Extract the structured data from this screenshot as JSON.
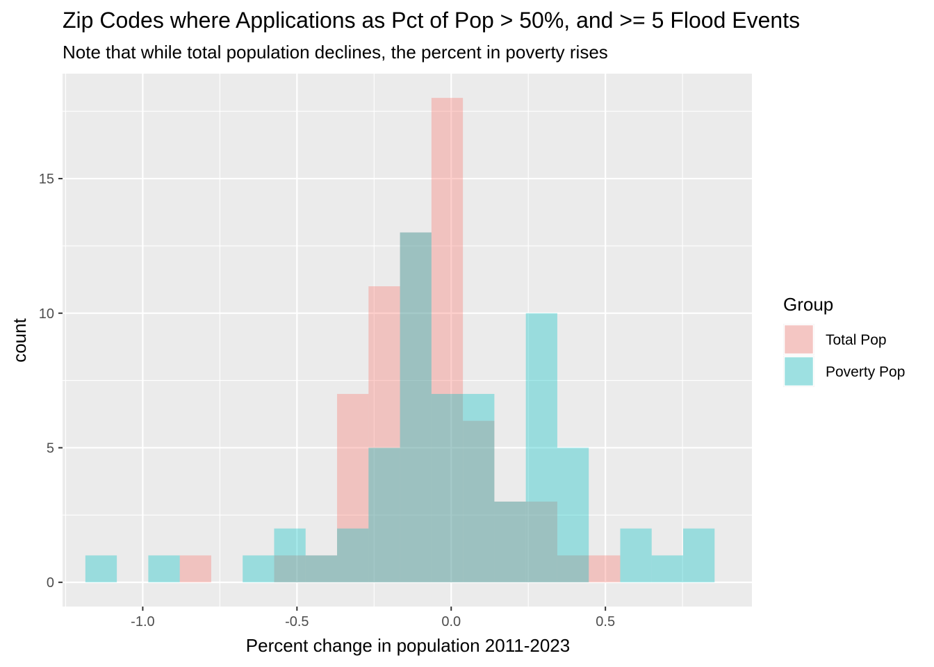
{
  "chart_data": {
    "type": "bar",
    "title": "Zip Codes where Applications as Pct of Pop > 50%, and >= 5 Flood Events",
    "subtitle": "Note that while total population declines, the percent in poverty rises",
    "xlabel": "Percent change in population 2011-2023",
    "ylabel": "count",
    "xlim": [
      -1.26,
      0.975
    ],
    "ylim": [
      -0.9,
      18.9
    ],
    "x_ticks": [
      -1.0,
      -0.5,
      0.0,
      0.5
    ],
    "x_tick_labels": [
      "-1.0",
      "-0.5",
      "0.0",
      "0.5"
    ],
    "y_ticks": [
      0,
      5,
      10,
      15
    ],
    "y_tick_labels": [
      "0",
      "5",
      "10",
      "15"
    ],
    "bin_width": 0.102,
    "grid": true,
    "legend": {
      "title": "Group",
      "position": "right"
    },
    "series": [
      {
        "name": "Total Pop",
        "color": "#F8766D",
        "bins": [
          {
            "x0": -0.88,
            "x1": -0.778,
            "count": 1
          },
          {
            "x0": -0.574,
            "x1": -0.472,
            "count": 1
          },
          {
            "x0": -0.472,
            "x1": -0.37,
            "count": 1
          },
          {
            "x0": -0.37,
            "x1": -0.268,
            "count": 7
          },
          {
            "x0": -0.268,
            "x1": -0.166,
            "count": 11
          },
          {
            "x0": -0.166,
            "x1": -0.064,
            "count": 13
          },
          {
            "x0": -0.064,
            "x1": 0.038,
            "count": 18
          },
          {
            "x0": 0.038,
            "x1": 0.14,
            "count": 6
          },
          {
            "x0": 0.14,
            "x1": 0.242,
            "count": 3
          },
          {
            "x0": 0.242,
            "x1": 0.344,
            "count": 3
          },
          {
            "x0": 0.344,
            "x1": 0.446,
            "count": 1
          },
          {
            "x0": 0.446,
            "x1": 0.548,
            "count": 1
          }
        ]
      },
      {
        "name": "Poverty Pop",
        "color": "#00BFC4",
        "bins": [
          {
            "x0": -1.186,
            "x1": -1.084,
            "count": 1
          },
          {
            "x0": -0.982,
            "x1": -0.88,
            "count": 1
          },
          {
            "x0": -0.676,
            "x1": -0.574,
            "count": 1
          },
          {
            "x0": -0.574,
            "x1": -0.472,
            "count": 2
          },
          {
            "x0": -0.472,
            "x1": -0.37,
            "count": 1
          },
          {
            "x0": -0.37,
            "x1": -0.268,
            "count": 2
          },
          {
            "x0": -0.268,
            "x1": -0.166,
            "count": 5
          },
          {
            "x0": -0.166,
            "x1": -0.064,
            "count": 13
          },
          {
            "x0": -0.064,
            "x1": 0.038,
            "count": 7
          },
          {
            "x0": 0.038,
            "x1": 0.14,
            "count": 7
          },
          {
            "x0": 0.14,
            "x1": 0.242,
            "count": 3
          },
          {
            "x0": 0.242,
            "x1": 0.344,
            "count": 10
          },
          {
            "x0": 0.344,
            "x1": 0.446,
            "count": 5
          },
          {
            "x0": 0.548,
            "x1": 0.65,
            "count": 2
          },
          {
            "x0": 0.65,
            "x1": 0.752,
            "count": 1
          },
          {
            "x0": 0.752,
            "x1": 0.854,
            "count": 2
          }
        ]
      }
    ]
  }
}
